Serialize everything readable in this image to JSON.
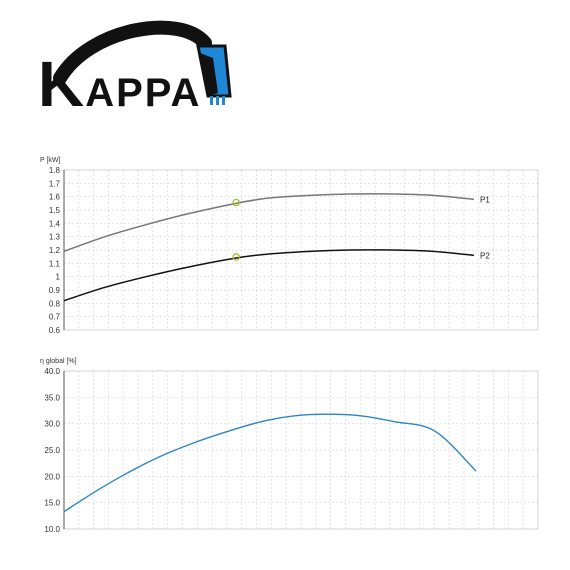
{
  "logo": {
    "text_big": "K",
    "text_small": "APPA",
    "accent_color": "#1e88d6"
  },
  "chart_data": [
    {
      "type": "line",
      "title": "",
      "ylabel": "P [kW]",
      "xlabel": "",
      "ylim": [
        0.6,
        1.8
      ],
      "yticks": [
        "0.6",
        "0.7",
        "0.8",
        "0.9",
        "1",
        "1.1",
        "1.2",
        "1.3",
        "1.4",
        "1.5",
        "1.6",
        "1.7",
        "1.8"
      ],
      "xlim": [
        0,
        1
      ],
      "grid": true,
      "series": [
        {
          "name": "P1",
          "color": "#777777",
          "x": [
            0,
            0.1,
            0.2,
            0.3,
            0.42,
            0.5,
            0.6,
            0.7,
            0.8,
            0.9,
            1.0
          ],
          "y": [
            1.19,
            1.3,
            1.39,
            1.47,
            1.55,
            1.59,
            1.61,
            1.62,
            1.62,
            1.61,
            1.58
          ],
          "marker": {
            "x": 0.42,
            "y": 1.556
          }
        },
        {
          "name": "P2",
          "color": "#111111",
          "x": [
            0,
            0.1,
            0.2,
            0.3,
            0.42,
            0.5,
            0.6,
            0.7,
            0.8,
            0.9,
            1.0
          ],
          "y": [
            0.82,
            0.92,
            1.0,
            1.07,
            1.14,
            1.17,
            1.19,
            1.2,
            1.2,
            1.19,
            1.16
          ],
          "marker": {
            "x": 0.42,
            "y": 1.148
          }
        }
      ]
    },
    {
      "type": "line",
      "title": "",
      "ylabel": "η global [%]",
      "xlabel": "",
      "ylim": [
        10,
        40
      ],
      "yticks": [
        "10.0",
        "15.0",
        "20.0",
        "25.0",
        "30.0",
        "35.0",
        "40.0"
      ],
      "xlim": [
        0,
        1
      ],
      "grid": true,
      "series": [
        {
          "name": "",
          "color": "#2b86c5",
          "x": [
            0,
            0.08,
            0.16,
            0.24,
            0.32,
            0.4,
            0.48,
            0.56,
            0.64,
            0.72,
            0.8,
            0.9,
            1.0
          ],
          "y": [
            13.3,
            17.3,
            20.9,
            24.0,
            26.5,
            28.6,
            30.4,
            31.5,
            31.8,
            31.5,
            30.4,
            28.6,
            21.0
          ]
        }
      ]
    }
  ]
}
